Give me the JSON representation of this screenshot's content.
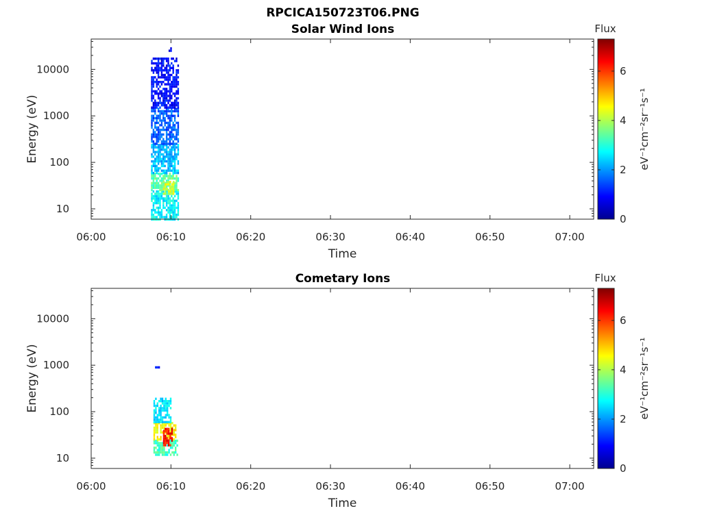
{
  "figure": {
    "title": "RPCICA150723T06.PNG"
  },
  "chart_data": [
    {
      "type": "heatmap",
      "title": "Solar Wind Ions",
      "xlabel": "Time",
      "ylabel": "Energy (eV)",
      "x_range": [
        "06:00",
        "07:03"
      ],
      "x_ticks": [
        "06:00",
        "06:10",
        "06:20",
        "06:30",
        "06:40",
        "06:50",
        "07:00"
      ],
      "y_scale": "log",
      "y_range": [
        6,
        45000
      ],
      "y_ticks": [
        "10",
        "100",
        "1000",
        "10000"
      ],
      "y_tick_values": [
        10,
        100,
        1000,
        10000
      ],
      "colorbar": {
        "title": "Flux",
        "label": "eV⁻¹cm⁻²sr⁻¹s⁻¹",
        "range": [
          0,
          7.3
        ],
        "ticks": [
          "0",
          "2",
          "4",
          "6"
        ],
        "colormap": "jet"
      },
      "cells": [
        {
          "t_start": "06:07.5",
          "t_end": "06:11",
          "e_min": 6,
          "e_max": 25,
          "flux": 2.7
        },
        {
          "t_start": "06:07.5",
          "t_end": "06:11",
          "e_min": 25,
          "e_max": 60,
          "flux": 3.4
        },
        {
          "t_start": "06:09",
          "t_end": "06:10.3",
          "e_min": 22,
          "e_max": 40,
          "flux": 4.3
        },
        {
          "t_start": "06:07.5",
          "t_end": "06:11",
          "e_min": 60,
          "e_max": 250,
          "flux": 2.3
        },
        {
          "t_start": "06:07.5",
          "t_end": "06:11",
          "e_min": 250,
          "e_max": 1500,
          "flux": 1.6
        },
        {
          "t_start": "06:07.5",
          "t_end": "06:11",
          "e_min": 1500,
          "e_max": 18000,
          "flux": 1.0
        },
        {
          "t_start": "06:09.5",
          "t_end": "06:10",
          "e_min": 25000,
          "e_max": 30000,
          "flux": 0.8
        }
      ]
    },
    {
      "type": "heatmap",
      "title": "Cometary Ions",
      "xlabel": "Time",
      "ylabel": "Energy (eV)",
      "x_range": [
        "06:00",
        "07:03"
      ],
      "x_ticks": [
        "06:00",
        "06:10",
        "06:20",
        "06:30",
        "06:40",
        "06:50",
        "07:00"
      ],
      "y_scale": "log",
      "y_range": [
        6,
        45000
      ],
      "y_ticks": [
        "10",
        "100",
        "1000",
        "10000"
      ],
      "y_tick_values": [
        10,
        100,
        1000,
        10000
      ],
      "colorbar": {
        "title": "Flux",
        "label": "eV⁻¹cm⁻²sr⁻¹s⁻¹",
        "range": [
          0,
          7.3
        ],
        "ticks": [
          "0",
          "2",
          "4",
          "6"
        ],
        "colormap": "jet"
      },
      "cells": [
        {
          "t_start": "06:07.8",
          "t_end": "06:10.8",
          "e_min": 12,
          "e_max": 25,
          "flux": 3.2
        },
        {
          "t_start": "06:07.8",
          "t_end": "06:10.5",
          "e_min": 25,
          "e_max": 60,
          "flux": 4.6
        },
        {
          "t_start": "06:09",
          "t_end": "06:10.2",
          "e_min": 18,
          "e_max": 45,
          "flux": 6.3
        },
        {
          "t_start": "06:07.8",
          "t_end": "06:10",
          "e_min": 60,
          "e_max": 200,
          "flux": 2.6
        },
        {
          "t_start": "06:08",
          "t_end": "06:08.5",
          "e_min": 850,
          "e_max": 950,
          "flux": 1.2
        }
      ]
    }
  ]
}
